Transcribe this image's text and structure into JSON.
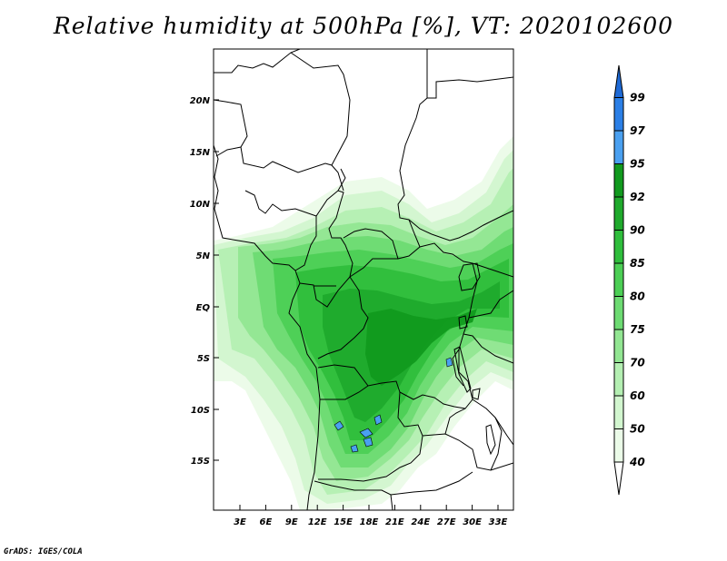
{
  "title": "Relative humidity at 500hPa [%], VT: 2020102600",
  "credit": "GrADS: IGES/COLA",
  "map": {
    "lat_labels": [
      "20N",
      "15N",
      "10N",
      "5N",
      "EQ",
      "5S",
      "10S",
      "15S"
    ],
    "lon_labels": [
      "3E",
      "6E",
      "9E",
      "12E",
      "15E",
      "18E",
      "21E",
      "24E",
      "27E",
      "30E",
      "33E"
    ],
    "lon_range": [
      0,
      35
    ],
    "lat_range": [
      -20,
      24
    ],
    "variable": "Relative humidity",
    "level": "500hPa",
    "units": "%"
  },
  "colorbar": {
    "labels": [
      "99",
      "97",
      "95",
      "92",
      "90",
      "85",
      "80",
      "75",
      "70",
      "60",
      "50",
      "40"
    ],
    "colors": {
      "above_99": "#1e6ad6",
      "97_99": "#2b7fe6",
      "95_97": "#4aa0f0",
      "92_95": "#119a1e",
      "90_92": "#1faa2c",
      "85_90": "#2fbe3c",
      "80_85": "#4ccf55",
      "75_80": "#6ddb72",
      "70_75": "#92e692",
      "60_70": "#b4efb2",
      "50_60": "#d2f6cf",
      "40_50": "#ebfbe8",
      "below_40": "#ffffff"
    }
  }
}
